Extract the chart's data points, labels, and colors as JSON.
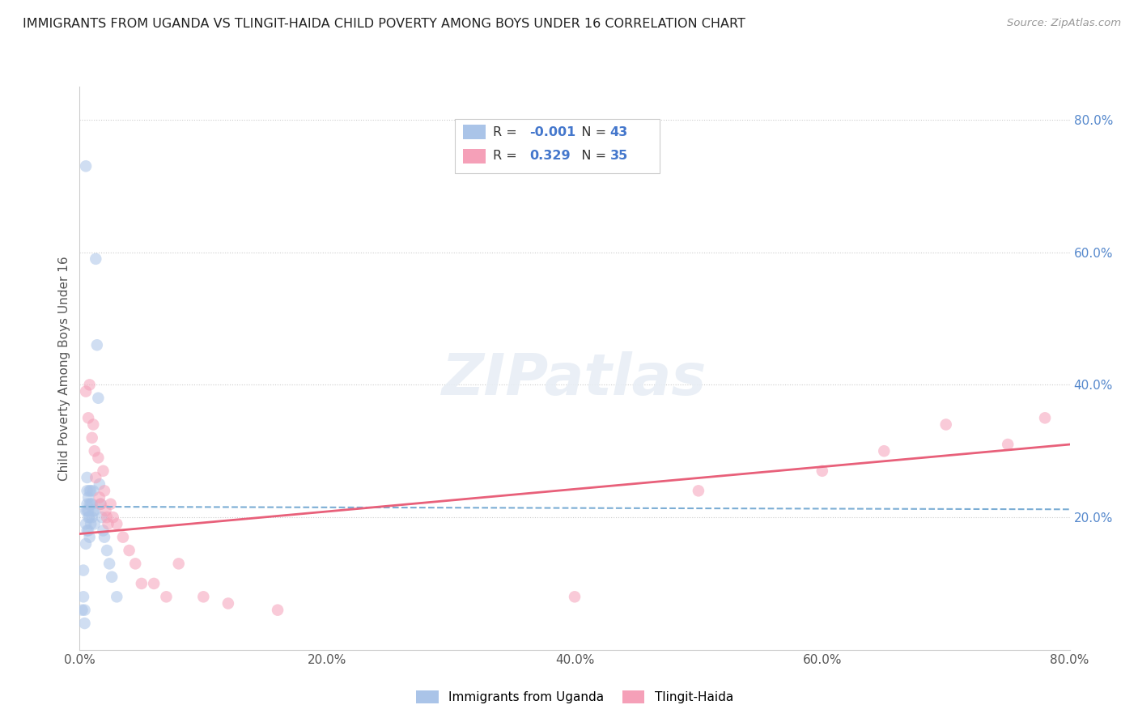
{
  "title": "IMMIGRANTS FROM UGANDA VS TLINGIT-HAIDA CHILD POVERTY AMONG BOYS UNDER 16 CORRELATION CHART",
  "source": "Source: ZipAtlas.com",
  "ylabel": "Child Poverty Among Boys Under 16",
  "legend_label1": "Immigrants from Uganda",
  "legend_label2": "Tlingit-Haida",
  "R1": "-0.001",
  "N1": "43",
  "R2": "0.329",
  "N2": "35",
  "blue_color": "#aac4e8",
  "pink_color": "#f5a0b8",
  "blue_line_color": "#7badd4",
  "pink_line_color": "#e8607a",
  "title_color": "#222222",
  "source_color": "#999999",
  "right_axis_color": "#5588cc",
  "scatter_size": 110,
  "blue_alpha": 0.55,
  "pink_alpha": 0.55,
  "blue_points_x": [
    0.002,
    0.003,
    0.003,
    0.004,
    0.004,
    0.005,
    0.005,
    0.005,
    0.005,
    0.006,
    0.006,
    0.006,
    0.006,
    0.006,
    0.007,
    0.007,
    0.007,
    0.007,
    0.008,
    0.008,
    0.008,
    0.008,
    0.009,
    0.009,
    0.009,
    0.01,
    0.01,
    0.011,
    0.011,
    0.012,
    0.012,
    0.013,
    0.014,
    0.015,
    0.016,
    0.017,
    0.018,
    0.019,
    0.02,
    0.022,
    0.024,
    0.026,
    0.03
  ],
  "blue_points_y": [
    0.06,
    0.12,
    0.08,
    0.06,
    0.04,
    0.73,
    0.21,
    0.19,
    0.16,
    0.26,
    0.24,
    0.22,
    0.21,
    0.18,
    0.23,
    0.21,
    0.2,
    0.18,
    0.24,
    0.22,
    0.2,
    0.17,
    0.24,
    0.22,
    0.19,
    0.22,
    0.2,
    0.24,
    0.21,
    0.21,
    0.19,
    0.59,
    0.46,
    0.38,
    0.25,
    0.22,
    0.2,
    0.18,
    0.17,
    0.15,
    0.13,
    0.11,
    0.08
  ],
  "pink_points_x": [
    0.005,
    0.007,
    0.008,
    0.01,
    0.011,
    0.012,
    0.013,
    0.015,
    0.016,
    0.017,
    0.019,
    0.02,
    0.021,
    0.022,
    0.023,
    0.025,
    0.027,
    0.03,
    0.035,
    0.04,
    0.045,
    0.05,
    0.06,
    0.07,
    0.08,
    0.1,
    0.12,
    0.16,
    0.4,
    0.5,
    0.6,
    0.65,
    0.7,
    0.75,
    0.78
  ],
  "pink_points_y": [
    0.39,
    0.35,
    0.4,
    0.32,
    0.34,
    0.3,
    0.26,
    0.29,
    0.23,
    0.22,
    0.27,
    0.24,
    0.21,
    0.2,
    0.19,
    0.22,
    0.2,
    0.19,
    0.17,
    0.15,
    0.13,
    0.1,
    0.1,
    0.08,
    0.13,
    0.08,
    0.07,
    0.06,
    0.08,
    0.24,
    0.27,
    0.3,
    0.34,
    0.31,
    0.35
  ],
  "xlim": [
    0.0,
    0.8
  ],
  "ylim": [
    0.0,
    0.85
  ],
  "xtick_vals": [
    0.0,
    0.2,
    0.4,
    0.6,
    0.8
  ],
  "ytick_right_vals": [
    0.8,
    0.6,
    0.4,
    0.2
  ],
  "hlines": [
    0.8,
    0.6,
    0.4,
    0.2
  ],
  "blue_trend_start_y": 0.216,
  "blue_trend_end_y": 0.212,
  "pink_trend_start_y": 0.175,
  "pink_trend_end_y": 0.31
}
